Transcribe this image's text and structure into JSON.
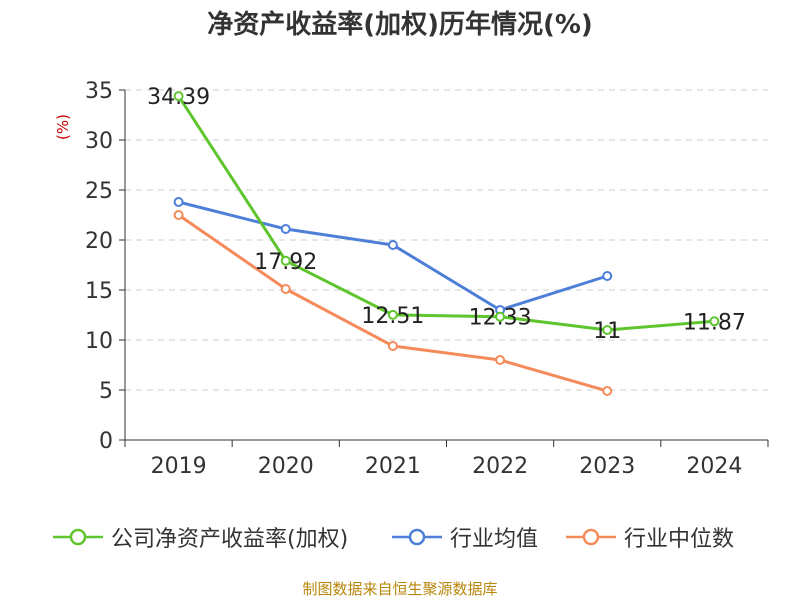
{
  "chart_data": {
    "type": "line",
    "title": "净资产收益率(加权)历年情况(%)",
    "ylabel": "(%)",
    "categories": [
      "2019",
      "2020",
      "2021",
      "2022",
      "2023",
      "2024"
    ],
    "ylim": [
      0,
      35
    ],
    "yticks": [
      0,
      5,
      10,
      15,
      20,
      25,
      30,
      35
    ],
    "grid": true,
    "legend_position": "bottom",
    "series": [
      {
        "name": "公司净资产收益率(加权)",
        "color": "#5fc52e",
        "values": [
          34.39,
          17.92,
          12.51,
          12.33,
          11,
          11.87
        ],
        "labels": [
          "34.39",
          "17.92",
          "12.51",
          "12.33",
          "11",
          "11.87"
        ]
      },
      {
        "name": "行业均值",
        "color": "#4e7fd8",
        "values": [
          23.8,
          21.1,
          19.5,
          13.0,
          16.4,
          null
        ]
      },
      {
        "name": "行业中位数",
        "color": "#f58a5a",
        "values": [
          22.5,
          15.1,
          9.4,
          8.0,
          4.9,
          null
        ]
      }
    ]
  },
  "source": "制图数据来自恒生聚源数据库"
}
